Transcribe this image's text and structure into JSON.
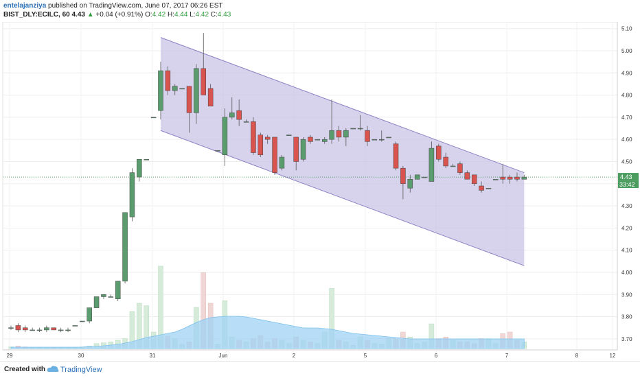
{
  "header": {
    "author": "entelajanziya",
    "published_text": "published on TradingView.com, June 07, 2017 06:26 EST",
    "symbol": "BIST_DLY:ECILC, 60",
    "last": "4.43",
    "change": "+0.04 (+0.91%)",
    "o_label": "O:",
    "o_value": "4.42",
    "h_label": "H:",
    "h_value": "4.44",
    "l_label": "L:",
    "l_value": "4.42",
    "c_label": "C:",
    "c_value": "4.43"
  },
  "footer": {
    "created_with": "Created with",
    "brand": "TradingView"
  },
  "colors": {
    "up": "#5b9c6e",
    "down": "#d9534f",
    "channel_fill": "#c8c0e4",
    "channel_line": "#8d80c4",
    "volume_ma": "#9fd2f4",
    "price_line": "#4a9c5f"
  },
  "chart_data": {
    "type": "candlestick",
    "ylim": [
      3.65,
      5.13
    ],
    "y_ticks": [
      "5.10",
      "5.00",
      "4.90",
      "4.80",
      "4.70",
      "4.60",
      "4.50",
      "4.40",
      "4.30",
      "4.20",
      "4.10",
      "4.00",
      "3.90",
      "3.80",
      "3.70"
    ],
    "x_ticks": [
      "29",
      "30",
      "31",
      "Jun",
      "2",
      "5",
      "6",
      "7",
      "8",
      "12"
    ],
    "last_price": "4.43",
    "countdown": "33:42",
    "candles": [
      {
        "o": 3.75,
        "h": 3.76,
        "l": 3.74,
        "c": 3.75
      },
      {
        "o": 3.76,
        "h": 3.77,
        "l": 3.73,
        "c": 3.74
      },
      {
        "o": 3.75,
        "h": 3.76,
        "l": 3.73,
        "c": 3.74
      },
      {
        "o": 3.74,
        "h": 3.75,
        "l": 3.74,
        "c": 3.74
      },
      {
        "o": 3.74,
        "h": 3.75,
        "l": 3.73,
        "c": 3.74
      },
      {
        "o": 3.74,
        "h": 3.76,
        "l": 3.73,
        "c": 3.75
      },
      {
        "o": 3.75,
        "h": 3.75,
        "l": 3.74,
        "c": 3.74
      },
      {
        "o": 3.74,
        "h": 3.75,
        "l": 3.73,
        "c": 3.74
      },
      {
        "o": 3.74,
        "h": 3.75,
        "l": 3.73,
        "c": 3.74
      },
      {
        "o": 3.76,
        "h": 3.76,
        "l": 3.76,
        "c": 3.76
      },
      {
        "o": 3.78,
        "h": 3.78,
        "l": 3.78,
        "c": 3.78
      },
      {
        "o": 3.78,
        "h": 3.84,
        "l": 3.77,
        "c": 3.84
      },
      {
        "o": 3.84,
        "h": 3.89,
        "l": 3.84,
        "c": 3.89
      },
      {
        "o": 3.89,
        "h": 3.9,
        "l": 3.88,
        "c": 3.9
      },
      {
        "o": 3.89,
        "h": 3.9,
        "l": 3.89,
        "c": 3.89
      },
      {
        "o": 3.88,
        "h": 3.96,
        "l": 3.87,
        "c": 3.96
      },
      {
        "o": 3.96,
        "h": 4.27,
        "l": 3.95,
        "c": 4.27
      },
      {
        "o": 4.25,
        "h": 4.47,
        "l": 4.23,
        "c": 4.45
      },
      {
        "o": 4.43,
        "h": 4.51,
        "l": 4.41,
        "c": 4.51
      },
      {
        "o": 4.51,
        "h": 4.51,
        "l": 4.51,
        "c": 4.51
      },
      {
        "o": 4.7,
        "h": 4.7,
        "l": 4.7,
        "c": 4.7
      },
      {
        "o": 4.73,
        "h": 4.95,
        "l": 4.69,
        "c": 4.91
      },
      {
        "o": 4.91,
        "h": 4.93,
        "l": 4.8,
        "c": 4.82
      },
      {
        "o": 4.82,
        "h": 4.85,
        "l": 4.8,
        "c": 4.84
      },
      {
        "o": 4.83,
        "h": 4.83,
        "l": 4.83,
        "c": 4.83
      },
      {
        "o": 4.84,
        "h": 4.84,
        "l": 4.63,
        "c": 4.72
      },
      {
        "o": 4.72,
        "h": 4.94,
        "l": 4.67,
        "c": 4.92
      },
      {
        "o": 4.92,
        "h": 5.08,
        "l": 4.8,
        "c": 4.8
      },
      {
        "o": 4.83,
        "h": 4.85,
        "l": 4.75,
        "c": 4.75
      },
      {
        "o": 4.55,
        "h": 4.55,
        "l": 4.55,
        "c": 4.55
      },
      {
        "o": 4.53,
        "h": 4.74,
        "l": 4.48,
        "c": 4.7
      },
      {
        "o": 4.7,
        "h": 4.79,
        "l": 4.69,
        "c": 4.72
      },
      {
        "o": 4.73,
        "h": 4.78,
        "l": 4.66,
        "c": 4.69
      },
      {
        "o": 4.68,
        "h": 4.69,
        "l": 4.68,
        "c": 4.68
      },
      {
        "o": 4.68,
        "h": 4.7,
        "l": 4.53,
        "c": 4.54
      },
      {
        "o": 4.62,
        "h": 4.63,
        "l": 4.52,
        "c": 4.53
      },
      {
        "o": 4.61,
        "h": 4.62,
        "l": 4.58,
        "c": 4.6
      },
      {
        "o": 4.61,
        "h": 4.61,
        "l": 4.44,
        "c": 4.45
      },
      {
        "o": 4.47,
        "h": 4.53,
        "l": 4.46,
        "c": 4.52
      },
      {
        "o": 4.62,
        "h": 4.62,
        "l": 4.62,
        "c": 4.62
      },
      {
        "o": 4.61,
        "h": 4.61,
        "l": 4.46,
        "c": 4.5
      },
      {
        "o": 4.51,
        "h": 4.61,
        "l": 4.5,
        "c": 4.6
      },
      {
        "o": 4.61,
        "h": 4.62,
        "l": 4.58,
        "c": 4.59
      },
      {
        "o": 4.6,
        "h": 4.6,
        "l": 4.6,
        "c": 4.6
      },
      {
        "o": 4.59,
        "h": 4.61,
        "l": 4.58,
        "c": 4.6
      },
      {
        "o": 4.6,
        "h": 4.78,
        "l": 4.58,
        "c": 4.64
      },
      {
        "o": 4.64,
        "h": 4.66,
        "l": 4.59,
        "c": 4.61
      },
      {
        "o": 4.61,
        "h": 4.65,
        "l": 4.57,
        "c": 4.64
      },
      {
        "o": 4.65,
        "h": 4.65,
        "l": 4.65,
        "c": 4.65
      },
      {
        "o": 4.65,
        "h": 4.71,
        "l": 4.64,
        "c": 4.65
      },
      {
        "o": 4.64,
        "h": 4.66,
        "l": 4.57,
        "c": 4.59
      },
      {
        "o": 4.6,
        "h": 4.6,
        "l": 4.6,
        "c": 4.6
      },
      {
        "o": 4.6,
        "h": 4.64,
        "l": 4.59,
        "c": 4.6
      },
      {
        "o": 4.61,
        "h": 4.61,
        "l": 4.61,
        "c": 4.61
      },
      {
        "o": 4.58,
        "h": 4.59,
        "l": 4.46,
        "c": 4.47
      },
      {
        "o": 4.47,
        "h": 4.48,
        "l": 4.33,
        "c": 4.4
      },
      {
        "o": 4.38,
        "h": 4.44,
        "l": 4.36,
        "c": 4.42
      },
      {
        "o": 4.42,
        "h": 4.44,
        "l": 4.42,
        "c": 4.44
      },
      {
        "o": 4.43,
        "h": 4.43,
        "l": 4.43,
        "c": 4.43
      },
      {
        "o": 4.41,
        "h": 4.59,
        "l": 4.41,
        "c": 4.56
      },
      {
        "o": 4.57,
        "h": 4.58,
        "l": 4.5,
        "c": 4.51
      },
      {
        "o": 4.52,
        "h": 4.54,
        "l": 4.47,
        "c": 4.48
      },
      {
        "o": 4.48,
        "h": 4.49,
        "l": 4.48,
        "c": 4.48
      },
      {
        "o": 4.49,
        "h": 4.5,
        "l": 4.44,
        "c": 4.45
      },
      {
        "o": 4.45,
        "h": 4.46,
        "l": 4.42,
        "c": 4.42
      },
      {
        "o": 4.44,
        "h": 4.44,
        "l": 4.39,
        "c": 4.4
      },
      {
        "o": 4.39,
        "h": 4.41,
        "l": 4.36,
        "c": 4.37
      },
      {
        "o": 4.38,
        "h": 4.38,
        "l": 4.38,
        "c": 4.38
      },
      {
        "o": 4.42,
        "h": 4.42,
        "l": 4.42,
        "c": 4.42
      },
      {
        "o": 4.43,
        "h": 4.49,
        "l": 4.4,
        "c": 4.42
      },
      {
        "o": 4.43,
        "h": 4.44,
        "l": 4.4,
        "c": 4.42
      },
      {
        "o": 4.43,
        "h": 4.45,
        "l": 4.41,
        "c": 4.42
      },
      {
        "o": 4.42,
        "h": 4.44,
        "l": 4.42,
        "c": 4.43
      }
    ],
    "volume": [
      0.02,
      0.03,
      0.02,
      0.01,
      0.01,
      0.01,
      0.01,
      0.01,
      0.01,
      0.01,
      0.02,
      0.03,
      0.06,
      0.07,
      0.08,
      0.1,
      0.12,
      0.45,
      0.55,
      0.52,
      0.2,
      1.0,
      0.15,
      0.12,
      0.05,
      0.08,
      0.5,
      0.92,
      0.55,
      0.05,
      0.58,
      0.14,
      0.1,
      0.08,
      0.12,
      0.16,
      0.08,
      0.12,
      0.1,
      0.06,
      0.14,
      0.1,
      0.08,
      0.06,
      0.2,
      0.73,
      0.1,
      0.08,
      0.04,
      0.14,
      0.1,
      0.06,
      0.05,
      0.12,
      0.12,
      0.2,
      0.14,
      0.06,
      0.08,
      0.3,
      0.12,
      0.14,
      0.1,
      0.08,
      0.08,
      0.06,
      0.12,
      0.12,
      0.06,
      0.18,
      0.2,
      0.1,
      0.08
    ],
    "volume_ma": [
      0.02,
      0.02,
      0.02,
      0.02,
      0.02,
      0.02,
      0.02,
      0.02,
      0.02,
      0.02,
      0.02,
      0.03,
      0.03,
      0.04,
      0.05,
      0.06,
      0.08,
      0.1,
      0.13,
      0.16,
      0.18,
      0.2,
      0.22,
      0.24,
      0.28,
      0.33,
      0.38,
      0.42,
      0.45,
      0.46,
      0.47,
      0.47,
      0.47,
      0.46,
      0.44,
      0.42,
      0.4,
      0.38,
      0.36,
      0.34,
      0.32,
      0.3,
      0.3,
      0.3,
      0.29,
      0.28,
      0.26,
      0.24,
      0.22,
      0.21,
      0.2,
      0.19,
      0.18,
      0.17,
      0.16,
      0.15,
      0.14,
      0.14,
      0.14,
      0.14,
      0.14,
      0.14,
      0.14,
      0.14,
      0.14,
      0.14,
      0.14,
      0.14,
      0.14,
      0.14,
      0.14,
      0.14,
      0.14
    ],
    "channel": {
      "upper_start": 5.06,
      "upper_end": 4.45,
      "lower_start": 4.64,
      "lower_end": 4.03,
      "start_index": 21,
      "end_index": 72
    }
  }
}
